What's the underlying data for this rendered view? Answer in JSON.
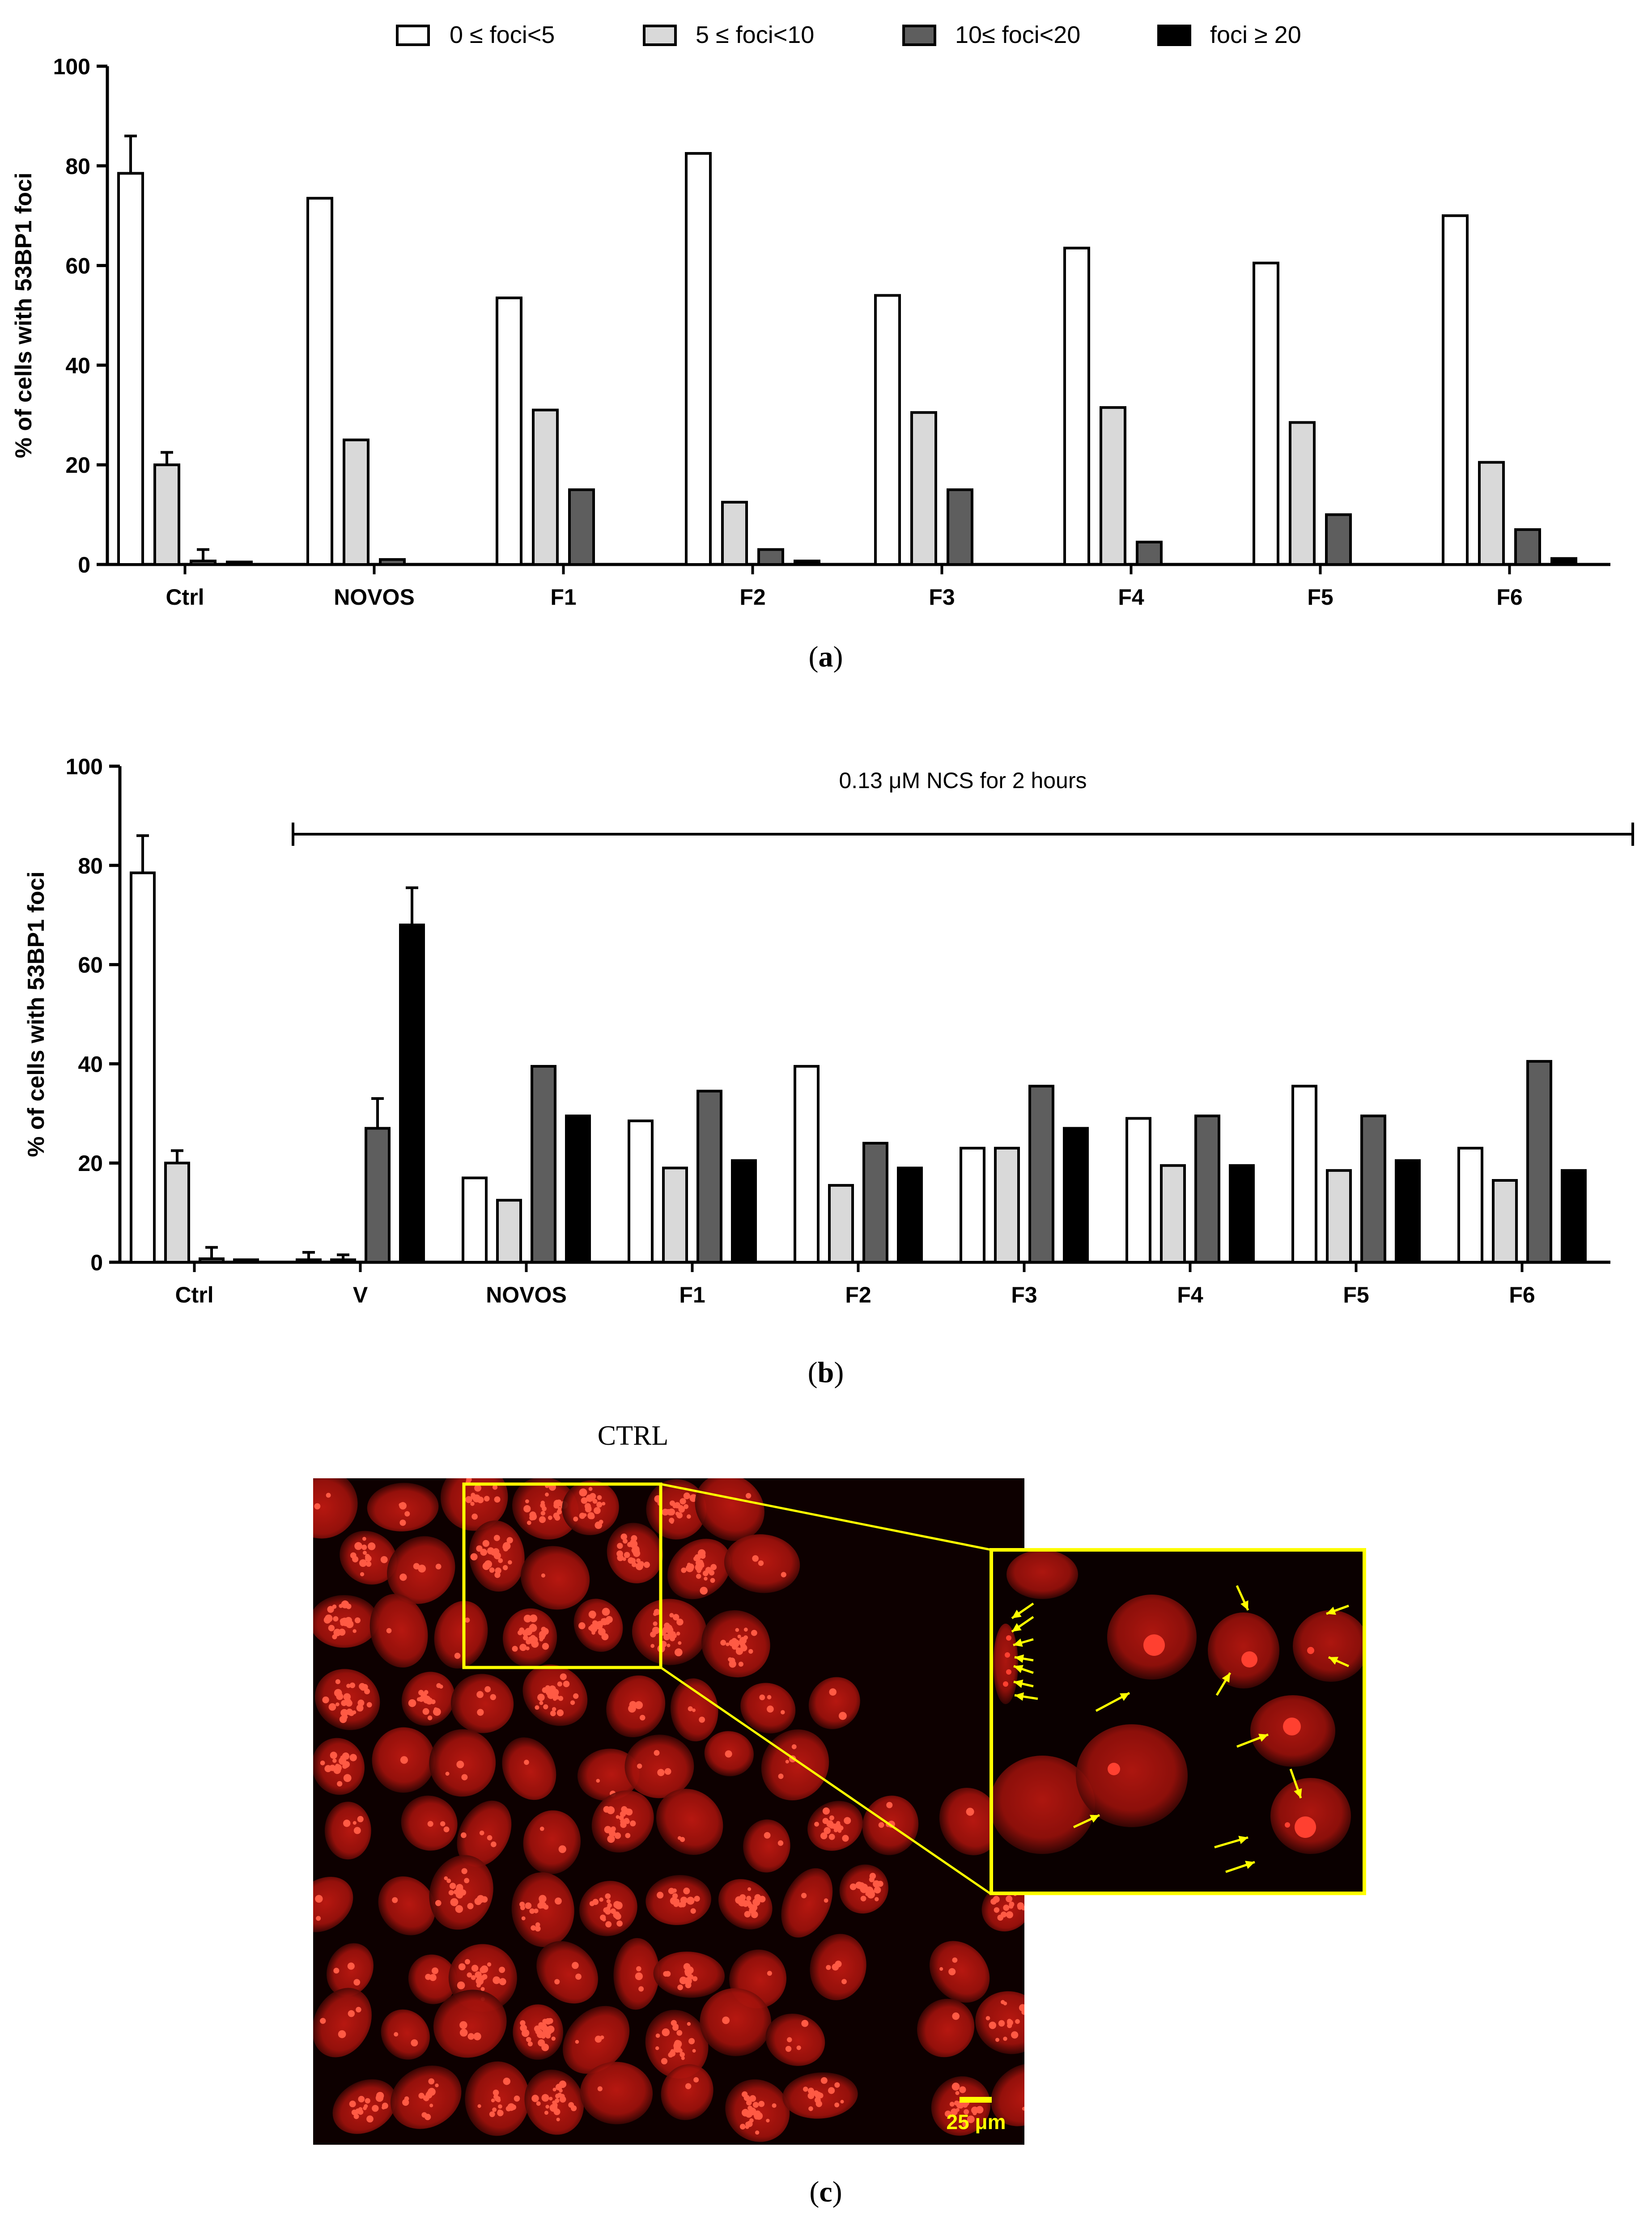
{
  "legend": {
    "items": [
      {
        "label": "0 ≤ foci<5",
        "color": "#ffffff"
      },
      {
        "label": "5 ≤ foci<10",
        "color": "#d9d9d9"
      },
      {
        "label": "10≤ foci<20",
        "color": "#5e5e5e"
      },
      {
        "label": "foci ≥ 20",
        "color": "#000000"
      }
    ]
  },
  "chart_data": [
    {
      "type": "bar",
      "panel": "(a)",
      "panel_label_open": "(",
      "panel_label_letter": "a",
      "panel_label_close": ")",
      "ylabel": "% of cells with 53BP1 foci",
      "ylim": [
        0,
        100
      ],
      "yticks": [
        0,
        20,
        40,
        60,
        80,
        100
      ],
      "categories": [
        "Ctrl",
        "NOVOS",
        "F1",
        "F2",
        "F3",
        "F4",
        "F5",
        "F6"
      ],
      "series": [
        {
          "name": "0 ≤ foci<5",
          "values": [
            78.5,
            73.5,
            53.5,
            82.5,
            54,
            63.5,
            60.5,
            70
          ]
        },
        {
          "name": "5 ≤ foci<10",
          "values": [
            20,
            25,
            31,
            12.5,
            30.5,
            31.5,
            28.5,
            20.5
          ]
        },
        {
          "name": "10≤ foci<20",
          "values": [
            0.7,
            1,
            15,
            3,
            15,
            4.5,
            10,
            7
          ]
        },
        {
          "name": "foci ≥ 20",
          "values": [
            0.5,
            0,
            0,
            0.7,
            0,
            0,
            0,
            1.2
          ]
        }
      ],
      "errors": [
        {
          "category": "Ctrl",
          "series": 0,
          "value": 7.5
        },
        {
          "category": "Ctrl",
          "series": 1,
          "value": 2.5
        },
        {
          "category": "Ctrl",
          "series": 2,
          "value": 2.3
        }
      ]
    },
    {
      "type": "bar",
      "panel": "(b)",
      "panel_label_open": "(",
      "panel_label_letter": "b",
      "panel_label_close": ")",
      "ylabel": "% of cells with 53BP1 foci",
      "ylim": [
        0,
        100
      ],
      "yticks": [
        0,
        20,
        40,
        60,
        80,
        100
      ],
      "annotation": "0.13 μM NCS for 2 hours",
      "categories": [
        "Ctrl",
        "V",
        "NOVOS",
        "F1",
        "F2",
        "F3",
        "F4",
        "F5",
        "F6"
      ],
      "series": [
        {
          "name": "0 ≤ foci<5",
          "values": [
            78.5,
            0.5,
            17,
            28.5,
            39.5,
            23,
            29,
            35.5,
            23
          ]
        },
        {
          "name": "5 ≤ foci<10",
          "values": [
            20,
            0.5,
            12.5,
            19,
            15.5,
            23,
            19.5,
            18.5,
            16.5
          ]
        },
        {
          "name": "10≤ foci<20",
          "values": [
            0.7,
            27,
            39.5,
            34.5,
            24,
            35.5,
            29.5,
            29.5,
            40.5
          ]
        },
        {
          "name": "foci ≥ 20",
          "values": [
            0.5,
            68,
            29.5,
            20.5,
            19,
            27,
            19.5,
            20.5,
            18.5
          ]
        }
      ],
      "errors": [
        {
          "category": "Ctrl",
          "series": 0,
          "value": 7.5
        },
        {
          "category": "Ctrl",
          "series": 1,
          "value": 2.5
        },
        {
          "category": "Ctrl",
          "series": 2,
          "value": 2.3
        },
        {
          "category": "V",
          "series": 0,
          "value": 1.5
        },
        {
          "category": "V",
          "series": 1,
          "value": 1.0
        },
        {
          "category": "V",
          "series": 2,
          "value": 6
        },
        {
          "category": "V",
          "series": 3,
          "value": 7.5
        }
      ]
    }
  ],
  "micrograph": {
    "title": "CTRL",
    "scale_bar": "25 μm",
    "panel_open": "(",
    "panel_letter": "c",
    "panel_close": ")",
    "nucleus_color": "#b8140f",
    "foci_color": "#ff3b2a",
    "box_color": "#ffff00",
    "arrow_color": "#ffff00"
  }
}
